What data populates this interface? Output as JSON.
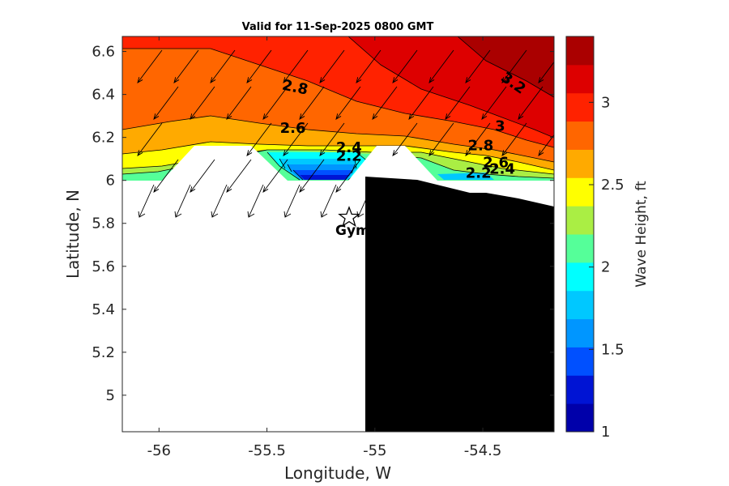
{
  "title": "Valid for 11-Sep-2025 0800 GMT",
  "xlabel": "Longitude, W",
  "ylabel": "Latitude, N",
  "colorbar_label": "Wave Height, ft",
  "station_label": "Gym",
  "chart_data": {
    "type": "heatmap",
    "title": "Valid for 11-Sep-2025 0800 GMT",
    "xlabel": "Longitude, W",
    "ylabel": "Latitude, N",
    "xlim": [
      -56.17,
      -54.17
    ],
    "ylim": [
      4.83,
      6.67
    ],
    "x_ticks": [
      -56,
      -55.5,
      -55,
      -54.5
    ],
    "x_tick_labels": [
      "-56",
      "-55.5",
      "-55",
      "-54.5"
    ],
    "y_ticks": [
      5,
      5.2,
      5.4,
      5.6,
      5.8,
      6,
      6.2,
      6.4,
      6.6
    ],
    "y_tick_labels": [
      "5",
      "5.2",
      "5.4",
      "5.6",
      "5.8",
      "6",
      "6.2",
      "6.4",
      "6.6"
    ],
    "colorbar": {
      "label": "Wave Height, ft",
      "range": [
        1,
        3.4
      ],
      "ticks": [
        1,
        1.5,
        2,
        2.5,
        3
      ],
      "tick_labels": [
        "1",
        "1.5",
        "2",
        "2.5",
        "3"
      ],
      "colors": [
        "#0000aa",
        "#0014d4",
        "#0050ff",
        "#0096ff",
        "#00c8ff",
        "#00ffff",
        "#55ff99",
        "#aaee44",
        "#ffff00",
        "#ffaa00",
        "#ff6600",
        "#ff2200",
        "#dd0000",
        "#aa0000"
      ]
    },
    "contour_labels": [
      {
        "text": "2.8",
        "lon": -55.37,
        "lat": 6.43
      },
      {
        "text": "2.6",
        "lon": -55.38,
        "lat": 6.24
      },
      {
        "text": "2.4",
        "lon": -55.12,
        "lat": 6.15
      },
      {
        "text": "2.2",
        "lon": -55.12,
        "lat": 6.11
      },
      {
        "text": "3.2",
        "lon": -54.36,
        "lat": 6.45
      },
      {
        "text": "3",
        "lon": -54.42,
        "lat": 6.25
      },
      {
        "text": "2.8",
        "lon": -54.51,
        "lat": 6.16
      },
      {
        "text": "2.6",
        "lon": -54.44,
        "lat": 6.08
      },
      {
        "text": "2.4",
        "lon": -54.41,
        "lat": 6.05
      },
      {
        "text": "2.2",
        "lon": -54.52,
        "lat": 6.03
      }
    ],
    "station": {
      "name": "Gym",
      "lon": -55.1,
      "lat": 5.84
    },
    "wave_direction": "toward southwest"
  }
}
